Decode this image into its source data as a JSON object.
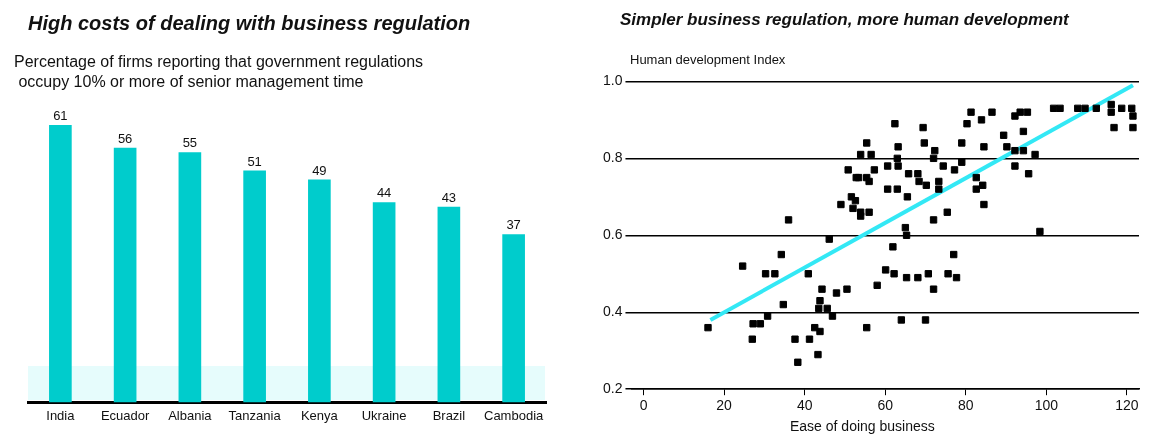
{
  "chart_data": [
    {
      "type": "bar",
      "title": "High costs of dealing with business regulation",
      "subtitle": "Percentage of firms reporting that government regulations\n occupy 10% or more of senior management time",
      "categories": [
        "India",
        "Ecuador",
        "Albania",
        "Tanzania",
        "Kenya",
        "Ukraine",
        "Brazil",
        "Cambodia"
      ],
      "values": [
        61,
        56,
        55,
        51,
        49,
        44,
        43,
        37
      ],
      "color": "#00cccc",
      "data_labels": true
    },
    {
      "type": "scatter",
      "title": "Simpler business regulation, more human development",
      "xlabel": "Ease of doing business",
      "ylabel": "Human development Index",
      "xlim": [
        -3,
        123
      ],
      "ylim": [
        0.2,
        1.0
      ],
      "xticks": [
        0,
        20,
        40,
        60,
        80,
        100,
        120
      ],
      "yticks": [
        0.2,
        0.4,
        0.6,
        0.8,
        {
          "value": 1.0,
          "label": "1.0"
        }
      ],
      "grid": "y",
      "series": [
        {
          "color": "#000000",
          "marker": "square",
          "x": [
            16,
            24.6,
            30.3,
            32.6,
            34.2,
            34.7,
            27,
            27.2,
            29,
            30.8,
            37.6,
            38.3,
            40.9,
            41.2,
            42.5,
            43.3,
            43.8,
            43.8,
            43.5,
            45.6,
            44.3,
            46.9,
            47.9,
            50.5,
            46.1,
            55.4,
            36,
            55.4,
            53.9,
            50.8,
            49,
            51.6,
            52,
            53.9,
            53.4,
            55.4,
            62.4,
            69.4,
            69.7,
            72.3,
            72,
            74.4,
            77.2,
            79,
            79,
            81.3,
            80.3,
            83.9,
            86.5,
            92.2,
            93.5,
            95.3,
            94.3,
            89.4,
            90.2,
            92.2,
            94.3,
            97.2,
            92.2,
            95.6,
            84.5,
            82.6,
            84.2,
            82.6,
            84.5,
            75.4,
            72,
            98.4,
            65,
            65.3,
            61.9,
            101.8,
            103.4,
            107.8,
            109.6,
            112.4,
            116.1,
            116.1,
            118.7,
            121.2,
            121.5,
            116.8,
            121.5,
            56.5,
            63.2,
            63,
            60.6,
            63.2,
            65.8,
            68.1,
            68.4,
            70.2,
            73.3,
            73.3,
            60.6,
            63,
            65.5,
            57.3,
            56,
            52.8,
            52.6,
            53.9,
            56,
            60.1,
            62.2,
            58,
            65.3,
            68.1,
            70.7,
            72,
            75.6,
            77,
            77.7,
            64,
            70
          ],
          "values": [
            0.36,
            0.52,
            0.5,
            0.5,
            0.55,
            0.42,
            0.33,
            0.37,
            0.37,
            0.39,
            0.33,
            0.27,
            0.5,
            0.33,
            0.36,
            0.29,
            0.35,
            0.43,
            0.41,
            0.41,
            0.46,
            0.39,
            0.45,
            0.46,
            0.59,
            0.36,
            0.64,
            0.84,
            0.81,
            0.77,
            0.68,
            0.7,
            0.67,
            0.66,
            0.75,
            0.75,
            0.89,
            0.88,
            0.84,
            0.82,
            0.8,
            0.78,
            0.77,
            0.79,
            0.84,
            0.92,
            0.89,
            0.9,
            0.92,
            0.91,
            0.92,
            0.92,
            0.87,
            0.86,
            0.83,
            0.82,
            0.82,
            0.81,
            0.78,
            0.76,
            0.83,
            0.75,
            0.73,
            0.72,
            0.68,
            0.66,
            0.64,
            0.61,
            0.62,
            0.6,
            0.57,
            0.93,
            0.93,
            0.93,
            0.93,
            0.93,
            0.94,
            0.92,
            0.93,
            0.93,
            0.91,
            0.88,
            0.88,
            0.81,
            0.83,
            0.8,
            0.78,
            0.78,
            0.76,
            0.76,
            0.74,
            0.73,
            0.74,
            0.72,
            0.72,
            0.72,
            0.7,
            0.77,
            0.74,
            0.75,
            0.69,
            0.65,
            0.66,
            0.51,
            0.5,
            0.47,
            0.49,
            0.49,
            0.5,
            0.46,
            0.5,
            0.55,
            0.49,
            0.38,
            0.38
          ]
        },
        {
          "type": "line",
          "marker": "none",
          "color": "#33e8f5",
          "x": [
            16.6,
            121.5
          ],
          "values": [
            0.38,
            0.99
          ]
        }
      ]
    }
  ]
}
